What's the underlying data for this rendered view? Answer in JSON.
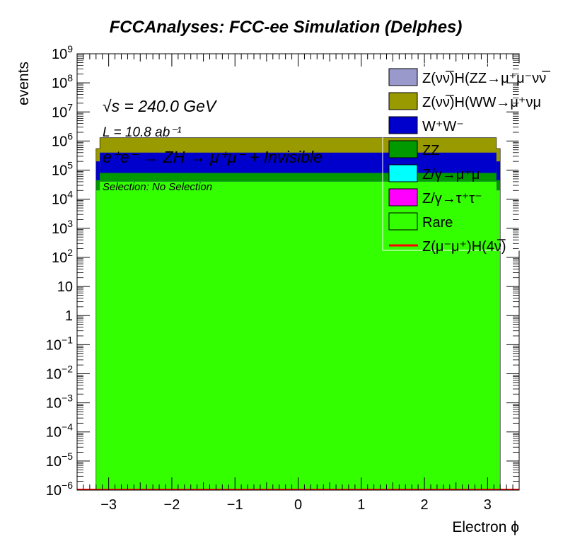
{
  "chart_data": {
    "type": "bar",
    "stacked": true,
    "log_y": true,
    "title": "FCCAnalyses: FCC-ee Simulation (Delphes)",
    "xlabel": "Electron ϕ",
    "ylabel": "events",
    "xlim": [
      -3.5,
      3.5
    ],
    "ylim_exp": [
      -6,
      9
    ],
    "x_ticks": [
      -3,
      -2,
      -1,
      0,
      1,
      2,
      3
    ],
    "x_tick_labels": [
      "−3",
      "−2",
      "−1",
      "0",
      "1",
      "2",
      "3"
    ],
    "y_ticks_exp": [
      -6,
      -5,
      -4,
      -3,
      -2,
      -1,
      0,
      1,
      2,
      3,
      4,
      5,
      6,
      7,
      8,
      9
    ],
    "bins": [
      {
        "lo": -3.2,
        "hi": -3.14
      },
      {
        "lo": -3.14,
        "hi": 3.14
      },
      {
        "lo": 3.14,
        "hi": 3.2
      }
    ],
    "stack_totals": [
      {
        "name": "Rare",
        "values": [
          20000,
          40000,
          20000
        ]
      },
      {
        "name": "Z/γ→τ⁺τ⁻",
        "values": [
          20000,
          40000,
          20000
        ]
      },
      {
        "name": "Z/γ→μ⁺μ⁻",
        "values": [
          20000,
          40000,
          20000
        ]
      },
      {
        "name": "ZZ",
        "values": [
          45000,
          80000,
          45000
        ]
      },
      {
        "name": "W⁺W⁻",
        "values": [
          200000,
          400000,
          200000
        ]
      },
      {
        "name": "Z(νν̅)H(WW→μ⁺νμ⁻ν̅)",
        "values": [
          550000,
          1300000,
          550000
        ]
      },
      {
        "name": "Z(νν̅)H(ZZ→μ⁺μ⁻νν̅)",
        "values": [
          550000,
          1300000,
          550000
        ]
      }
    ],
    "signal_line": {
      "name": "Z(μ⁻μ⁺)H(4ν̅)",
      "values": [
        1e-06,
        1e-06,
        1e-06
      ]
    },
    "legend": {
      "placement": "top-right",
      "entries": [
        {
          "label": "Z(νν̅)H(ZZ→μ⁺μ⁻νν̅",
          "color": "#9999cc",
          "kind": "box"
        },
        {
          "label": "Z(νν̅)H(WW→μ⁺νμ",
          "color": "#999900",
          "kind": "box"
        },
        {
          "label": "W⁺W⁻",
          "color": "#0000cc",
          "kind": "box"
        },
        {
          "label": "ZZ",
          "color": "#009900",
          "kind": "box"
        },
        {
          "label": "Z/γ→μ⁺μ",
          "color": "#00ffff",
          "kind": "box"
        },
        {
          "label": "Z/γ→τ⁺τ⁻",
          "color": "#ff00ff",
          "kind": "box"
        },
        {
          "label": "Rare",
          "color": "#33ff00",
          "kind": "box"
        },
        {
          "label": "Z(μ⁻μ⁺)H(4ν̅)",
          "color": "#ff0000",
          "kind": "line"
        }
      ]
    },
    "annotations": {
      "energy": "√s = 240.0 GeV",
      "lumi": "L = 10.8 ab⁻¹",
      "process": "e⁺e⁻ → ZH → μ⁺μ⁻ + Invisible",
      "selection": "Selection: No Selection"
    }
  }
}
